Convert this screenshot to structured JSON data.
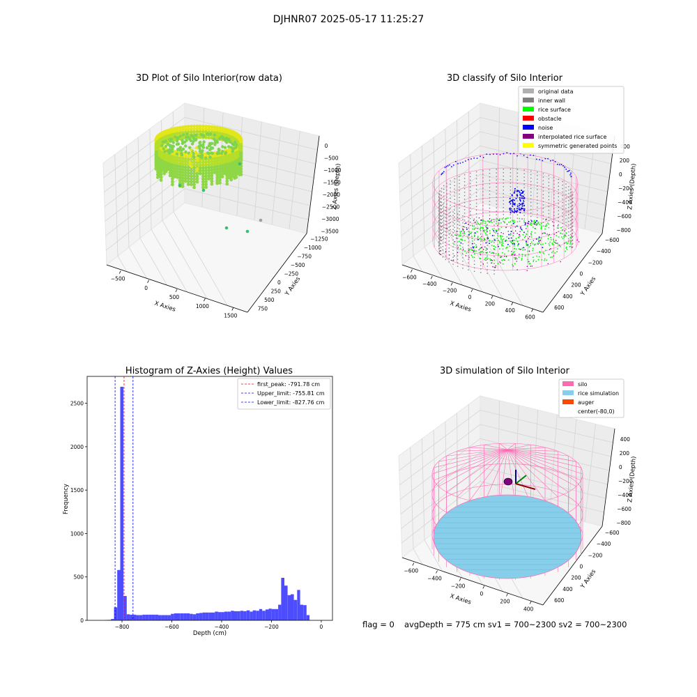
{
  "suptitle": "DJHNR07 2025-05-17 11:25:27",
  "chart_data": [
    {
      "type": "scatter",
      "title": "3D Plot of Silo Interior(row data)",
      "xlabel": "X Axies",
      "ylabel": "Y Axies",
      "zlabel": "Z Axies (Depth)",
      "x_ticks": [
        "−500",
        "0",
        "500",
        "1000",
        "1500"
      ],
      "y_ticks": [
        "750",
        "500",
        "250",
        "0",
        "−250",
        "−500",
        "−750",
        "−1000",
        "−1250"
      ],
      "z_ticks": [
        "0",
        "−500",
        "−1000",
        "−1500",
        "−2000",
        "−2500",
        "−3000",
        "−3500"
      ],
      "colors": {
        "ring": "#e3e619",
        "inner": "#7fd34e",
        "outlier": "#3dbc74"
      }
    },
    {
      "type": "scatter",
      "title": "3D classify of Silo Interior",
      "xlabel": "X Axies",
      "ylabel": "Y Axies",
      "zlabel": "Z Axies (Depth)",
      "x_ticks": [
        "−600",
        "−400",
        "−200",
        "0",
        "200",
        "400",
        "600"
      ],
      "y_ticks": [
        "600",
        "400",
        "200",
        "0",
        "−200",
        "−400",
        "−600"
      ],
      "z_ticks": [
        "400",
        "200",
        "0",
        "−200",
        "−400",
        "−600",
        "−800"
      ],
      "legend_position": "top-right",
      "legend": [
        {
          "label": "original data",
          "color": "#b0b0b0"
        },
        {
          "label": "inner wall",
          "color": "#808080"
        },
        {
          "label": "rice surface",
          "color": "#00ff00"
        },
        {
          "label": "obstacle",
          "color": "#ff0000"
        },
        {
          "label": "noise",
          "color": "#0000ff"
        },
        {
          "label": "interpolated rice surface",
          "color": "#800080"
        },
        {
          "label": "symmetric generated points",
          "color": "#ffff00"
        }
      ],
      "colors": {
        "wire": "#ff69b4"
      }
    },
    {
      "type": "bar",
      "title": "Histogram of Z-Axies (Height) Values",
      "xlabel": "Depth (cm)",
      "ylabel": "Frequency",
      "xlim": [
        -940,
        45
      ],
      "ylim": [
        0,
        2810
      ],
      "x_ticks": [
        -800,
        -600,
        -400,
        -200,
        0
      ],
      "y_ticks": [
        0,
        500,
        1000,
        1500,
        2000,
        2500
      ],
      "tick_labels_x": [
        "−800",
        "−600",
        "−400",
        "−200",
        "0"
      ],
      "tick_labels_y": [
        "0",
        "500",
        "1000",
        "1500",
        "2000",
        "2500"
      ],
      "bins": [
        [
          -870,
          -857,
          3
        ],
        [
          -857,
          -844,
          5
        ],
        [
          -844,
          -832,
          15
        ],
        [
          -832,
          -819,
          150
        ],
        [
          -819,
          -807,
          580
        ],
        [
          -807,
          -794,
          2690
        ],
        [
          -794,
          -781,
          280
        ],
        [
          -781,
          -769,
          70
        ],
        [
          -769,
          -756,
          65
        ],
        [
          -756,
          -743,
          65
        ],
        [
          -743,
          -731,
          60
        ],
        [
          -731,
          -718,
          60
        ],
        [
          -718,
          -705,
          65
        ],
        [
          -705,
          -693,
          65
        ],
        [
          -693,
          -680,
          65
        ],
        [
          -680,
          -667,
          65
        ],
        [
          -667,
          -655,
          65
        ],
        [
          -655,
          -642,
          60
        ],
        [
          -642,
          -629,
          60
        ],
        [
          -629,
          -617,
          60
        ],
        [
          -617,
          -604,
          60
        ],
        [
          -604,
          -591,
          75
        ],
        [
          -591,
          -579,
          80
        ],
        [
          -579,
          -566,
          80
        ],
        [
          -566,
          -553,
          80
        ],
        [
          -553,
          -541,
          80
        ],
        [
          -541,
          -528,
          80
        ],
        [
          -528,
          -515,
          75
        ],
        [
          -515,
          -503,
          70
        ],
        [
          -503,
          -490,
          80
        ],
        [
          -490,
          -477,
          85
        ],
        [
          -477,
          -465,
          90
        ],
        [
          -465,
          -452,
          90
        ],
        [
          -452,
          -439,
          90
        ],
        [
          -439,
          -427,
          90
        ],
        [
          -427,
          -414,
          100
        ],
        [
          -414,
          -401,
          95
        ],
        [
          -401,
          -389,
          95
        ],
        [
          -389,
          -376,
          100
        ],
        [
          -376,
          -363,
          100
        ],
        [
          -363,
          -351,
          110
        ],
        [
          -351,
          -338,
          105
        ],
        [
          -338,
          -325,
          105
        ],
        [
          -325,
          -313,
          110
        ],
        [
          -313,
          -300,
          105
        ],
        [
          -300,
          -287,
          115
        ],
        [
          -287,
          -275,
          100
        ],
        [
          -275,
          -262,
          115
        ],
        [
          -262,
          -249,
          110
        ],
        [
          -249,
          -237,
          130
        ],
        [
          -237,
          -224,
          110
        ],
        [
          -224,
          -211,
          125
        ],
        [
          -211,
          -199,
          135
        ],
        [
          -199,
          -186,
          130
        ],
        [
          -186,
          -173,
          130
        ],
        [
          -173,
          -161,
          180
        ],
        [
          -161,
          -148,
          490
        ],
        [
          -148,
          -135,
          400
        ],
        [
          -135,
          -123,
          290
        ],
        [
          -123,
          -110,
          300
        ],
        [
          -110,
          -97,
          235
        ],
        [
          -97,
          -85,
          350
        ],
        [
          -85,
          -72,
          180
        ],
        [
          -72,
          -59,
          175
        ],
        [
          -59,
          -47,
          60
        ]
      ],
      "vlines": [
        {
          "x": -791.78,
          "label": "first_peak: -791.78 cm",
          "color": "#ff0000"
        },
        {
          "x": -755.81,
          "label": "Upper_limit: -755.81 cm",
          "color": "#0000ff"
        },
        {
          "x": -827.76,
          "label": "Lower_limit: -827.76 cm",
          "color": "#0000ff"
        }
      ],
      "bar_color": "#4d4dff",
      "legend_position": "top-right"
    },
    {
      "type": "scatter",
      "title": "3D simulation of Silo Interior",
      "xlabel": "X Axies",
      "ylabel": "Y Axies",
      "zlabel": "Z Axies (Depth)",
      "x_ticks": [
        "−600",
        "−400",
        "−200",
        "0",
        "200",
        "400"
      ],
      "y_ticks": [
        "600",
        "400",
        "200",
        "0",
        "−200",
        "−400",
        "−600"
      ],
      "z_ticks": [
        "400",
        "200",
        "0",
        "−200",
        "−400",
        "−600",
        "−800"
      ],
      "legend_position": "top-right",
      "legend": [
        {
          "label": "silo",
          "color": "#ff69b4"
        },
        {
          "label": "rice simulation",
          "color": "#87ceeb"
        },
        {
          "label": "auger",
          "color": "#ff4500"
        },
        {
          "label": "center(-80,0)",
          "color": "#ffffff"
        }
      ],
      "colors": {
        "wire": "#ff69b4",
        "surface": "#87ceeb"
      }
    }
  ],
  "footer": {
    "flag": "flag = 0",
    "stats": "avgDepth = 775 cm  sv1 = 700~2300  sv2 = 700~2300"
  }
}
